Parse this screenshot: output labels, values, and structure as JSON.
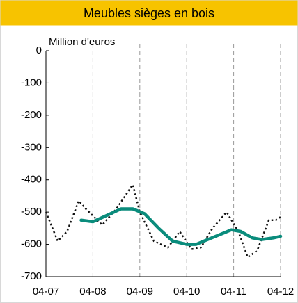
{
  "chart_data": {
    "type": "line",
    "title": "Meubles sièges en bois",
    "y_label": "Million d'euros",
    "xlim": [
      0,
      5
    ],
    "xticks": [
      {
        "value": 0,
        "label": "04-07"
      },
      {
        "value": 1,
        "label": "04-08"
      },
      {
        "value": 2,
        "label": "04-09"
      },
      {
        "value": 3,
        "label": "04-10"
      },
      {
        "value": 4,
        "label": "04-11"
      },
      {
        "value": 5,
        "label": "04-12"
      }
    ],
    "ylim": [
      -700,
      0
    ],
    "yticks": [
      0,
      -100,
      -200,
      -300,
      -400,
      -500,
      -600,
      -700
    ],
    "grid": true,
    "series": [
      {
        "color": "#111111",
        "style": "dotted",
        "x": [
          0,
          0.25,
          0.45,
          0.7,
          0.85,
          1.2,
          1.5,
          1.85,
          2.0,
          2.3,
          2.6,
          2.85,
          3.1,
          3.3,
          3.55,
          3.85,
          4.1,
          4.3,
          4.5,
          4.75,
          4.9,
          5.0
        ],
        "values": [
          -500,
          -590,
          -560,
          -465,
          -490,
          -540,
          -490,
          -415,
          -500,
          -590,
          -610,
          -560,
          -615,
          -610,
          -550,
          -500,
          -560,
          -640,
          -620,
          -525,
          -525,
          -515
        ]
      },
      {
        "color": "#0a8c7c",
        "style": "solid",
        "x": [
          0.75,
          1.0,
          1.3,
          1.6,
          1.85,
          2.1,
          2.4,
          2.7,
          3.0,
          3.2,
          3.45,
          3.7,
          3.95,
          4.15,
          4.4,
          4.6,
          4.85,
          5.0
        ],
        "values": [
          -525,
          -530,
          -510,
          -490,
          -490,
          -505,
          -550,
          -590,
          -600,
          -600,
          -585,
          -570,
          -555,
          -560,
          -580,
          -585,
          -580,
          -575
        ]
      }
    ]
  }
}
